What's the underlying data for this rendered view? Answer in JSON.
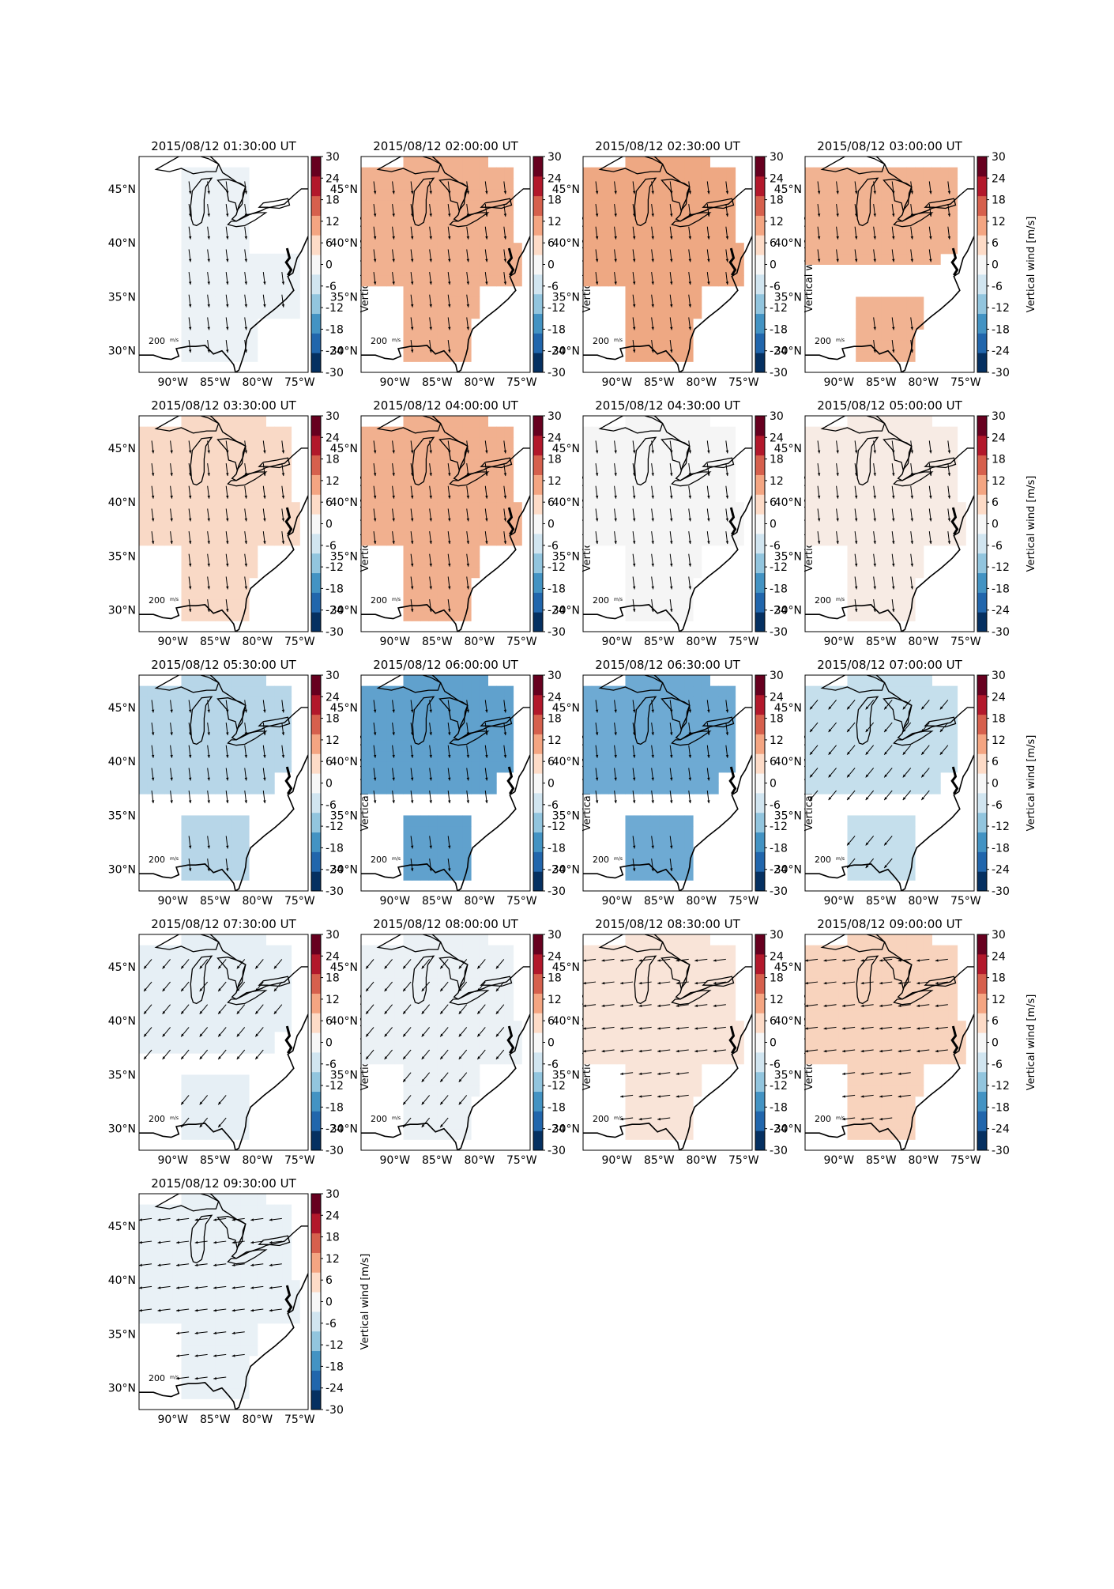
{
  "figure": {
    "colorbar_label": "Vertical wind [m/s]",
    "colorbar_ticks": [
      30,
      24,
      18,
      12,
      6,
      0,
      -6,
      -12,
      -18,
      -24,
      -30
    ],
    "colorbar_colors": [
      "#053061",
      "#2166ac",
      "#4393c3",
      "#92c5de",
      "#d1e5f0",
      "#f7f7f7",
      "#fddbc7",
      "#f4a582",
      "#d6604d",
      "#b2182b",
      "#67001f"
    ],
    "lon_labels": [
      "90°W",
      "85°W",
      "80°W",
      "75°W"
    ],
    "lat_labels": [
      "45°N",
      "40°N",
      "35°N",
      "30°N"
    ],
    "scale_label": "200",
    "scale_unit": "m/s"
  },
  "panels": [
    {
      "title": "2015/08/12 01:30:00 UT",
      "vertical_wind": -1,
      "color": "#ecf2f6",
      "arrow": "S"
    },
    {
      "title": "2015/08/12 02:00:00 UT",
      "vertical_wind": 9,
      "color": "#f1b190",
      "arrow": "S"
    },
    {
      "title": "2015/08/12 02:30:00 UT",
      "vertical_wind": 10,
      "color": "#eea883",
      "arrow": "S"
    },
    {
      "title": "2015/08/12 03:00:00 UT",
      "vertical_wind": 9,
      "color": "#f1b392",
      "arrow": "S"
    },
    {
      "title": "2015/08/12 03:30:00 UT",
      "vertical_wind": 5,
      "color": "#f9d9c6",
      "arrow": "S"
    },
    {
      "title": "2015/08/12 04:00:00 UT",
      "vertical_wind": 9,
      "color": "#f1b08f",
      "arrow": "S"
    },
    {
      "title": "2015/08/12 04:30:00 UT",
      "vertical_wind": 0,
      "color": "#f5f5f5",
      "arrow": "S"
    },
    {
      "title": "2015/08/12 05:00:00 UT",
      "vertical_wind": 1,
      "color": "#f7ebe4",
      "arrow": "S"
    },
    {
      "title": "2015/08/12 05:30:00 UT",
      "vertical_wind": -8,
      "color": "#b7d6e8",
      "arrow": "S"
    },
    {
      "title": "2015/08/12 06:00:00 UT",
      "vertical_wind": -15,
      "color": "#60a1cd",
      "arrow": "S"
    },
    {
      "title": "2015/08/12 06:30:00 UT",
      "vertical_wind": -13,
      "color": "#6eaad3",
      "arrow": "S"
    },
    {
      "title": "2015/08/12 07:00:00 UT",
      "vertical_wind": -7,
      "color": "#c5dfec",
      "arrow": "SW"
    },
    {
      "title": "2015/08/12 07:30:00 UT",
      "vertical_wind": -2,
      "color": "#e6eff5",
      "arrow": "SW"
    },
    {
      "title": "2015/08/12 08:00:00 UT",
      "vertical_wind": -1,
      "color": "#ebf1f5",
      "arrow": "SW"
    },
    {
      "title": "2015/08/12 08:30:00 UT",
      "vertical_wind": 2,
      "color": "#f9e4d8",
      "arrow": "W"
    },
    {
      "title": "2015/08/12 09:00:00 UT",
      "vertical_wind": 4,
      "color": "#f8d3bd",
      "arrow": "W"
    },
    {
      "title": "2015/08/12 09:30:00 UT",
      "vertical_wind": -1,
      "color": "#e9f1f6",
      "arrow": "W"
    }
  ]
}
